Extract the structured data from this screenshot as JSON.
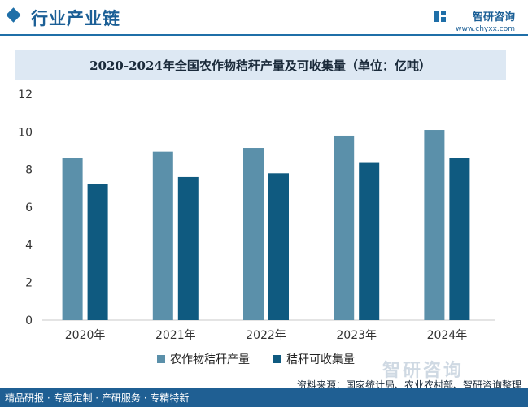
{
  "header": {
    "section_title": "行业产业链",
    "brand_name": "智研咨询",
    "brand_url": "www.chyxx.com"
  },
  "footer": {
    "tagline": "精品研报 · 专题定制 · 产研服务 · 专精特新",
    "source": "资料来源：国家统计局、农业农村部、智研咨询整理",
    "watermark": "智研咨询"
  },
  "colors": {
    "series1": "#5b90aa",
    "series2": "#0f5a80",
    "accent": "#1f6fa8"
  },
  "chart_data": {
    "type": "bar",
    "title": "2020-2024年全国农作物秸秆产量及可收集量（单位：亿吨）",
    "categories": [
      "2020年",
      "2021年",
      "2022年",
      "2023年",
      "2024年"
    ],
    "series": [
      {
        "name": "农作物秸秆产量",
        "values": [
          8.6,
          8.95,
          9.15,
          9.8,
          10.1
        ]
      },
      {
        "name": "秸秆可收集量",
        "values": [
          7.25,
          7.6,
          7.8,
          8.35,
          8.6
        ]
      }
    ],
    "xlabel": "",
    "ylabel": "",
    "ylim": [
      0,
      12
    ],
    "yticks": [
      0,
      2,
      4,
      6,
      8,
      10,
      12
    ],
    "grid": false,
    "legend_position": "bottom"
  }
}
